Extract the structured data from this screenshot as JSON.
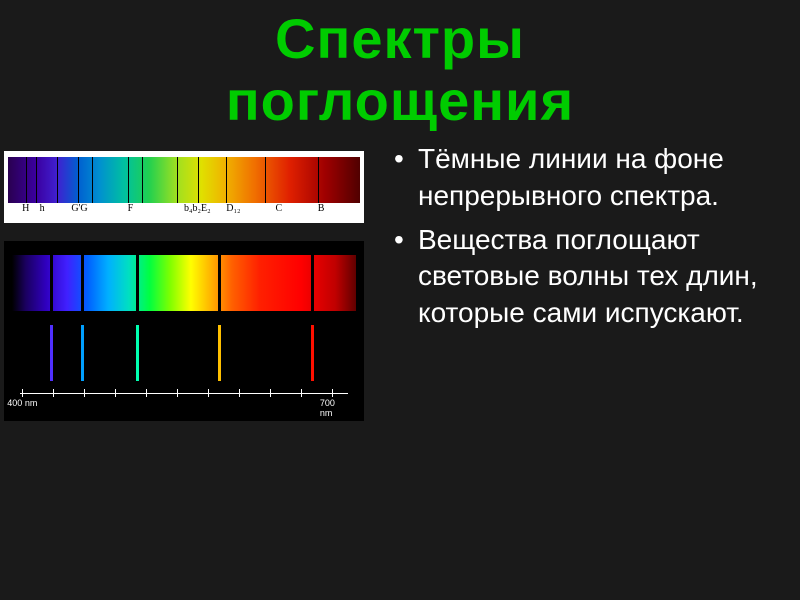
{
  "title_line1": "Спектры",
  "title_line2": "поглощения",
  "bullets": [
    "Тёмные линии на фоне непрерывного спектра.",
    "Вещества поглощают световые волны тех длин, которые сами испускают."
  ],
  "spectrum1": {
    "absorption_lines_pct": [
      5,
      8,
      14,
      20,
      24,
      34,
      38,
      48,
      54,
      62,
      73,
      88
    ],
    "letter_labels": [
      {
        "text": "H",
        "pct": 4
      },
      {
        "text": "h",
        "pct": 9
      },
      {
        "text": "G'G",
        "pct": 18
      },
      {
        "text": "F",
        "pct": 34
      },
      {
        "text": "b₄b₂E₂",
        "pct": 50
      },
      {
        "text": "D₁₂",
        "pct": 62
      },
      {
        "text": "C",
        "pct": 76
      },
      {
        "text": "B",
        "pct": 88
      }
    ]
  },
  "spectrum2": {
    "absorption_lines_pct": [
      11,
      20,
      36,
      60,
      87
    ]
  },
  "spectrum3": {
    "emission_lines": [
      {
        "pct": 11,
        "color": "#5030ff"
      },
      {
        "pct": 20,
        "color": "#00a0ff"
      },
      {
        "pct": 36,
        "color": "#00ffb0"
      },
      {
        "pct": 60,
        "color": "#ffc000"
      },
      {
        "pct": 87,
        "color": "#ff1000"
      }
    ]
  },
  "axis": {
    "left_label": "400 nm",
    "right_label": "700 nm",
    "ticks_pct": [
      3,
      12,
      21,
      30,
      39,
      48,
      57,
      66,
      75,
      84,
      93
    ]
  }
}
